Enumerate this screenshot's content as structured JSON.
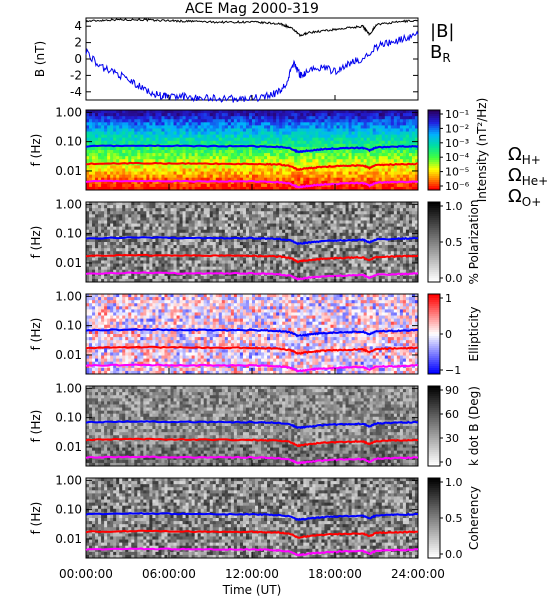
{
  "chart_data": [
    {
      "type": "line",
      "title": "ACE Mag 2000-319",
      "ylabel": "B (nT)",
      "ylim": [
        -5,
        5
      ],
      "yticks": [
        "4",
        "2",
        "0",
        "-2",
        "-4"
      ],
      "xlim": [
        0,
        24
      ],
      "series": [
        {
          "name": "|B|",
          "color": "#000000",
          "x": [
            0,
            1,
            2,
            3,
            4,
            5,
            6,
            7,
            8,
            9,
            10,
            11,
            12,
            13,
            14,
            14.5,
            15,
            15.5,
            16,
            17,
            18,
            19,
            20,
            20.5,
            21,
            22,
            23,
            24
          ],
          "y": [
            4.6,
            4.7,
            4.8,
            4.8,
            4.8,
            4.7,
            4.7,
            4.6,
            4.6,
            4.5,
            4.5,
            4.5,
            4.5,
            4.4,
            4.3,
            4.0,
            3.6,
            2.8,
            3.2,
            3.4,
            3.6,
            3.8,
            4.0,
            3.0,
            4.2,
            4.4,
            4.6,
            4.7
          ]
        },
        {
          "name": "B_R",
          "color": "#0000ee",
          "x": [
            0,
            1,
            2,
            3,
            4,
            5,
            5.5,
            6,
            7,
            8,
            9,
            10,
            11,
            12,
            13,
            14,
            14.5,
            15,
            15.5,
            16,
            17,
            18,
            19,
            20,
            21,
            22,
            23,
            24
          ],
          "y": [
            1.0,
            -1.0,
            -1.5,
            -2.5,
            -3.5,
            -4.3,
            -4.5,
            -4.6,
            -4.6,
            -4.7,
            -4.8,
            -4.8,
            -4.9,
            -4.8,
            -4.6,
            -4.0,
            -3.0,
            -0.5,
            -2.0,
            -1.5,
            -1.0,
            -1.5,
            -0.5,
            0.0,
            1.5,
            2.0,
            2.5,
            3.0
          ]
        }
      ]
    },
    {
      "type": "heatmap",
      "ylabel": "f (Hz)",
      "yticks": [
        "1.00",
        "0.10",
        "0.01"
      ],
      "colorbar_label": "Intensity (nT²/Hz)",
      "colorbar_ticks": [
        "10⁻¹",
        "10⁻²",
        "10⁻³",
        "10⁻⁴",
        "10⁻⁵",
        "10⁻⁶"
      ],
      "overlays": [
        "ΩH+",
        "ΩHe+",
        "ΩO+"
      ]
    },
    {
      "type": "heatmap",
      "ylabel": "f (Hz)",
      "yticks": [
        "1.00",
        "0.10",
        "0.01"
      ],
      "colorbar_label": "% Polarization",
      "colorbar_ticks": [
        "1.0",
        "0.5",
        "0.0"
      ]
    },
    {
      "type": "heatmap",
      "ylabel": "f (Hz)",
      "yticks": [
        "1.00",
        "0.10",
        "0.01"
      ],
      "colorbar_label": "Ellipticity",
      "colorbar_ticks": [
        "1",
        "0",
        "−1"
      ]
    },
    {
      "type": "heatmap",
      "ylabel": "f (Hz)",
      "yticks": [
        "1.00",
        "0.10",
        "0.01"
      ],
      "colorbar_label": "k dot B (Deg)",
      "colorbar_ticks": [
        "90",
        "60",
        "30",
        "0"
      ]
    },
    {
      "type": "heatmap",
      "ylabel": "f (Hz)",
      "yticks": [
        "1.00",
        "0.10",
        "0.01"
      ],
      "colorbar_label": "Coherency",
      "colorbar_ticks": [
        "1.0",
        "0.5",
        "0.0"
      ]
    }
  ],
  "cyclotron": {
    "x": [
      0,
      2,
      4,
      6,
      8,
      10,
      12,
      13,
      14,
      14.8,
      15.3,
      15.8,
      16.5,
      17,
      18,
      19,
      20,
      20.5,
      21,
      22,
      23,
      24
    ],
    "H": [
      0.07,
      0.072,
      0.074,
      0.072,
      0.071,
      0.07,
      0.07,
      0.068,
      0.066,
      0.058,
      0.045,
      0.048,
      0.052,
      0.055,
      0.058,
      0.06,
      0.062,
      0.05,
      0.064,
      0.066,
      0.068,
      0.07
    ],
    "He": [
      0.0175,
      0.018,
      0.0185,
      0.018,
      0.0178,
      0.0175,
      0.0175,
      0.017,
      0.0165,
      0.0145,
      0.011,
      0.012,
      0.013,
      0.0138,
      0.0145,
      0.015,
      0.0155,
      0.0125,
      0.016,
      0.0165,
      0.017,
      0.0175
    ],
    "O": [
      0.0044,
      0.0045,
      0.0046,
      0.0045,
      0.0044,
      0.0044,
      0.0044,
      0.0043,
      0.0041,
      0.0036,
      0.0028,
      0.003,
      0.0033,
      0.0034,
      0.0036,
      0.0038,
      0.0039,
      0.0031,
      0.004,
      0.0041,
      0.0042,
      0.0044
    ],
    "colors": {
      "H": "#0000ff",
      "He": "#ff0000",
      "O": "#ff00ff"
    }
  },
  "legend": {
    "top": [
      {
        "text": "|B|",
        "color": "#000000"
      },
      {
        "text": "B",
        "sub": "R",
        "color": "#0000ee"
      }
    ],
    "ions": [
      {
        "text": "Ω",
        "sub": "H+",
        "color": "#0000ff"
      },
      {
        "text": "Ω",
        "sub": "He+",
        "color": "#ff0000"
      },
      {
        "text": "Ω",
        "sub": "O+",
        "color": "#ff00ff"
      }
    ]
  },
  "xaxis": {
    "label": "Time (UT)",
    "ticks": [
      "00:00:00",
      "06:00:00",
      "12:00:00",
      "18:00:00",
      "24:00:00"
    ]
  }
}
